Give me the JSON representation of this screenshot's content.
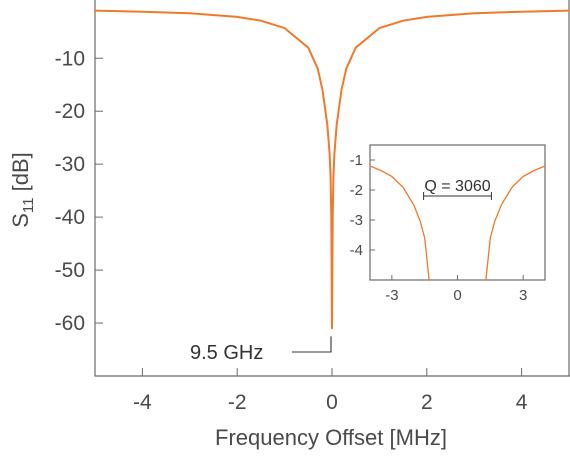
{
  "chart_data": [
    {
      "type": "line",
      "title": "",
      "xlabel": "Frequency Offset [MHz]",
      "ylabel_main": "S",
      "ylabel_sub": "11",
      "ylabel_unit": " [dB]",
      "xlim": [
        -5,
        5
      ],
      "ylim": [
        -70,
        1
      ],
      "xticks": [
        -4,
        -2,
        0,
        2,
        4
      ],
      "yticks": [
        -60,
        -50,
        -40,
        -30,
        -20,
        -10
      ],
      "color": "#f07a2a",
      "series": [
        {
          "x": [
            -5,
            -4,
            -3,
            -2,
            -1.5,
            -1,
            -0.5,
            -0.3,
            -0.2,
            -0.1,
            -0.05,
            -0.03,
            -0.015,
            0,
            0.015,
            0.03,
            0.05,
            0.1,
            0.2,
            0.3,
            0.5,
            1,
            1.5,
            2,
            3,
            4,
            5
          ],
          "y": [
            -1.0,
            -1.2,
            -1.5,
            -2.2,
            -2.9,
            -4.3,
            -8.0,
            -12.0,
            -16.0,
            -22.5,
            -28.0,
            -32.5,
            -40.0,
            -61.0,
            -40.0,
            -32.5,
            -28.0,
            -22.5,
            -16.0,
            -12.0,
            -8.0,
            -4.3,
            -2.9,
            -2.2,
            -1.5,
            -1.2,
            -1.0
          ]
        }
      ],
      "annotations": [
        {
          "text": "9.5 GHz",
          "x": 0,
          "y": -61
        }
      ]
    },
    {
      "type": "line",
      "title": "",
      "xlabel": "",
      "ylabel": "",
      "xlim": [
        -4,
        4
      ],
      "ylim": [
        -5,
        -0.5
      ],
      "xticks": [
        -3,
        0,
        3
      ],
      "yticks": [
        -1,
        -2,
        -3,
        -4
      ],
      "color": "#f07a2a",
      "series": [
        {
          "x": [
            -4,
            -3.5,
            -3,
            -2.5,
            -2,
            -1.7,
            -1.5,
            -1.4,
            -1.3,
            1.3,
            1.4,
            1.5,
            1.7,
            2,
            2.5,
            3,
            3.5,
            4
          ],
          "y": [
            -1.2,
            -1.35,
            -1.55,
            -1.9,
            -2.5,
            -3.05,
            -3.6,
            -4.3,
            -5.0,
            -5.0,
            -4.3,
            -3.6,
            -3.05,
            -2.5,
            -1.9,
            -1.55,
            -1.35,
            -1.2
          ]
        }
      ],
      "annotations": [
        {
          "text": "Q = 3060",
          "x1": -1.55,
          "x2": 1.55,
          "y": -2.2
        }
      ]
    }
  ]
}
